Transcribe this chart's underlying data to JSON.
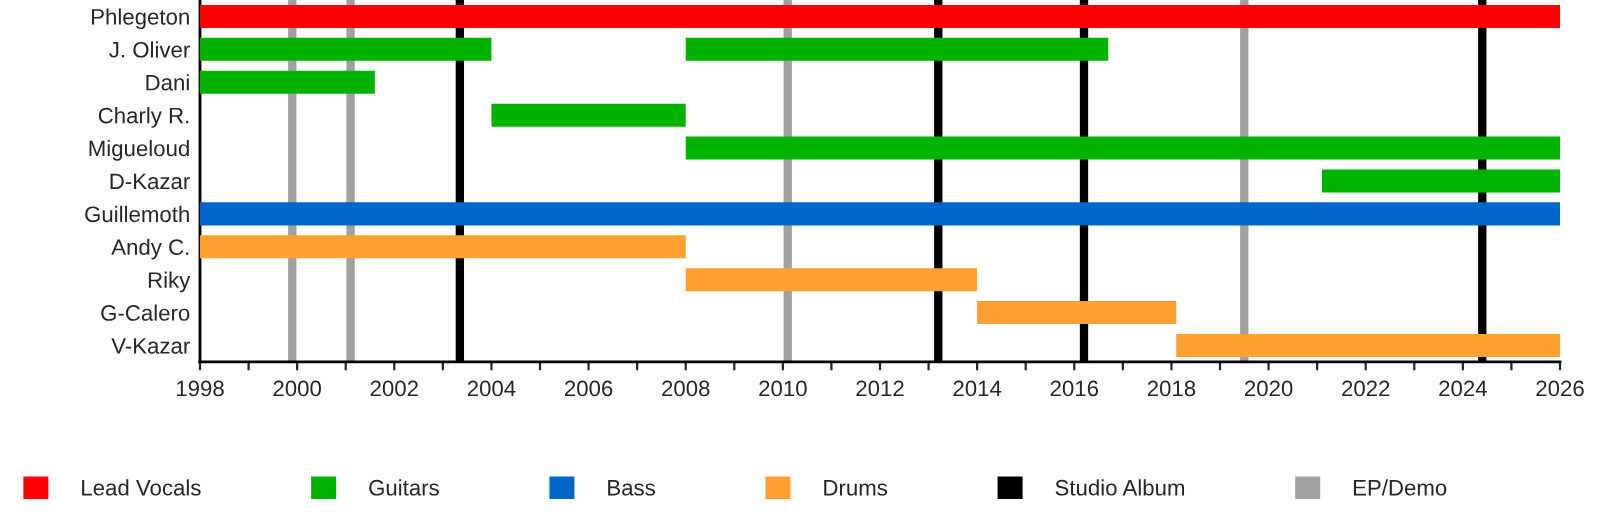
{
  "chart_data": {
    "type": "bar",
    "orientation": "horizontal",
    "categories": [
      "Phlegeton",
      "J. Oliver",
      "Dani",
      "Charly R.",
      "Migueloud",
      "D-Kazar",
      "Guillemoth",
      "Andy C.",
      "Riky",
      "G-Calero",
      "V-Kazar"
    ],
    "series": [
      {
        "name": "Lead Vocals",
        "color": "#ff0000",
        "base": [
          1998,
          null,
          null,
          null,
          null,
          null,
          null,
          null,
          null,
          null,
          null
        ],
        "values": [
          28,
          null,
          null,
          null,
          null,
          null,
          null,
          null,
          null,
          null,
          null
        ]
      },
      {
        "name": "Guitars",
        "color": "#00b300",
        "base": [
          null,
          1998,
          1998,
          2004,
          2008,
          2021.1,
          null,
          null,
          null,
          null,
          null
        ],
        "values": [
          null,
          6,
          3.6,
          4,
          18,
          4.9,
          null,
          null,
          null,
          null,
          null
        ]
      },
      {
        "color": "#00b300",
        "base": [
          null,
          2008,
          null,
          null,
          null,
          null,
          null,
          null,
          null,
          null,
          null
        ],
        "values": [
          null,
          8.7,
          null,
          null,
          null,
          null,
          null,
          null,
          null,
          null,
          null
        ]
      },
      {
        "name": "Bass",
        "color": "#0066cc",
        "base": [
          null,
          null,
          null,
          null,
          null,
          null,
          1998,
          null,
          null,
          null,
          null
        ],
        "values": [
          null,
          null,
          null,
          null,
          null,
          null,
          28,
          null,
          null,
          null,
          null
        ]
      },
      {
        "name": "Drums",
        "color": "#ffa030",
        "base": [
          null,
          null,
          null,
          null,
          null,
          null,
          null,
          1998,
          2008,
          2014,
          2018.1
        ],
        "values": [
          null,
          null,
          null,
          null,
          null,
          null,
          null,
          10,
          6,
          4.1,
          7.9
        ]
      }
    ],
    "ref_lines": [
      {
        "axis": "x",
        "value": 2003.35,
        "label": "Studio Album",
        "color": "#000000"
      },
      {
        "axis": "x",
        "value": 2013.2,
        "label": null,
        "color": "#000000"
      },
      {
        "axis": "x",
        "value": 2016.2,
        "label": null,
        "color": "#000000"
      },
      {
        "axis": "x",
        "value": 2024.4,
        "label": null,
        "color": "#000000"
      },
      {
        "axis": "x",
        "value": 1999.9,
        "label": "EP/Demo",
        "color": "#a0a0a0"
      },
      {
        "axis": "x",
        "value": 2001.1,
        "label": null,
        "color": "#a0a0a0"
      },
      {
        "axis": "x",
        "value": 2010.1,
        "label": null,
        "color": "#a0a0a0"
      },
      {
        "axis": "x",
        "value": 2019.5,
        "label": null,
        "color": "#a0a0a0"
      }
    ],
    "xlim": [
      1998,
      2026
    ],
    "xticks": [
      1998,
      {
        "value": 1999,
        "label": null
      },
      2000,
      {
        "value": 2001,
        "label": null
      },
      2002,
      {
        "value": 2003,
        "label": null
      },
      2004,
      {
        "value": 2005,
        "label": null
      },
      2006,
      {
        "value": 2007,
        "label": null
      },
      2008,
      {
        "value": 2009,
        "label": null
      },
      2010,
      {
        "value": 2011,
        "label": null
      },
      2012,
      {
        "value": 2013,
        "label": null
      },
      2014,
      {
        "value": 2015,
        "label": null
      },
      2016,
      {
        "value": 2017,
        "label": null
      },
      2018,
      {
        "value": 2019,
        "label": null
      },
      2020,
      {
        "value": 2021,
        "label": null
      },
      2022,
      {
        "value": 2023,
        "label": null
      },
      2024,
      {
        "value": 2025,
        "label": null
      },
      2026
    ],
    "grid": false,
    "legend": "bottom"
  }
}
